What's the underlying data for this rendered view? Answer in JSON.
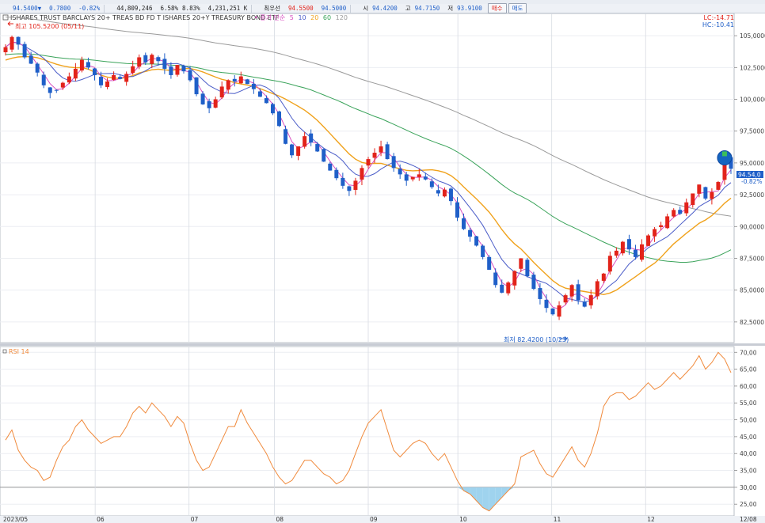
{
  "quote_bar": {
    "last_price": "94.5400",
    "change_arrow": "▼",
    "change": "0.7800",
    "change_pct": "-0.82%",
    "volume": "44,809,246",
    "volume_pct": "6.58%",
    "turnover_pct": "8.83%",
    "trade_value": "4,231,251 K",
    "bid_label": "최우선",
    "bid": "94.5500",
    "ask": "94.5000",
    "open_label": "시",
    "open": "94.4200",
    "high_label": "고",
    "high": "94.7150",
    "low_label": "저",
    "low": "93.9100",
    "buy_button": "매수",
    "sell_button": "매도"
  },
  "colors": {
    "up_candle": "#e2231a",
    "down_candle": "#1f5fc8",
    "ma5": "#d94fc0",
    "ma10": "#4a5cc8",
    "ma20": "#f0a21c",
    "ma60": "#3aa35a",
    "ma120": "#9a9a9a",
    "rsi": "#f08a3c",
    "highlight_marker": "#1565c0"
  },
  "chart_data": [
    {
      "type": "candlestick",
      "title": "ISHARES TRUST BARCLAYS 20+ TREAS BD FD T  ISHARES 20+Y TREASURY BOND ETF",
      "ma_legend_label": "종가 단순",
      "moving_averages": [
        "5",
        "10",
        "20",
        "60",
        "120"
      ],
      "ylim": [
        81,
        106.5
      ],
      "y_ticks": [
        "105,0000",
        "102,5000",
        "100,0000",
        "97,5000",
        "95,0000",
        "92,5000",
        "90,0000",
        "87,5000",
        "85,0000",
        "82,5000"
      ],
      "y_tick_values": [
        105,
        102.5,
        100,
        97.5,
        95,
        92.5,
        90,
        87.5,
        85,
        82.5
      ],
      "x_labels": [
        "2023/05",
        "06",
        "07",
        "08",
        "09",
        "10",
        "11",
        "12",
        "12/08"
      ],
      "current_price_label": "94.54,0",
      "current_change_label": "-0.82%",
      "lc_label": "LC:-14.71",
      "hc_label": "HC:-10.41",
      "annotations": {
        "high": "최고 105.5200 (05/11)",
        "low": "최저 82.4200 (10/23)"
      },
      "approx_closes": [
        104.1,
        104.9,
        104.3,
        103.3,
        102.8,
        102.1,
        101.1,
        100.5,
        100.7,
        101.3,
        101.8,
        102.4,
        103.1,
        102.5,
        101.9,
        101.1,
        101.4,
        101.9,
        101.6,
        102.0,
        102.6,
        103.3,
        102.9,
        103.5,
        103.0,
        102.4,
        101.9,
        102.7,
        102.2,
        101.5,
        100.4,
        99.6,
        99.3,
        100.0,
        101.0,
        101.5,
        101.4,
        101.8,
        101.2,
        100.8,
        100.2,
        99.7,
        98.9,
        97.9,
        96.5,
        95.6,
        96.3,
        97.1,
        96.6,
        95.9,
        95.1,
        94.4,
        93.8,
        93.2,
        92.8,
        93.6,
        94.6,
        95.3,
        95.8,
        96.3,
        95.3,
        94.6,
        94.1,
        93.6,
        93.9,
        94.1,
        93.7,
        93.1,
        92.6,
        92.9,
        92.0,
        90.7,
        89.8,
        89.2,
        88.5,
        87.6,
        86.6,
        85.4,
        84.8,
        85.6,
        86.5,
        87.5,
        86.1,
        85.1,
        84.3,
        83.6,
        83.1,
        83.8,
        84.6,
        85.4,
        84.2,
        83.7,
        84.6,
        85.7,
        86.3,
        87.7,
        88.1,
        88.8,
        88.2,
        87.6,
        88.6,
        89.3,
        89.8,
        90.1,
        90.8,
        91.3,
        91.0,
        91.9,
        92.6,
        93.3,
        92.2,
        92.7,
        93.5,
        95.32,
        94.54
      ]
    },
    {
      "type": "line",
      "title": "RSI 14",
      "ylim": [
        22,
        71
      ],
      "y_ticks": [
        "70,00",
        "65,00",
        "60,00",
        "55,00",
        "50,00",
        "45,00",
        "40,00",
        "35,00",
        "30,00",
        "25,00"
      ],
      "y_tick_values": [
        70,
        65,
        60,
        55,
        50,
        45,
        40,
        35,
        30,
        25
      ],
      "reference_line": 30,
      "approx_values": [
        44,
        47,
        41,
        38,
        36,
        35,
        32,
        33,
        38,
        42,
        44,
        48,
        50,
        47,
        45,
        43,
        44,
        45,
        45,
        48,
        52,
        54,
        52,
        55,
        53,
        51,
        48,
        51,
        49,
        43,
        38,
        35,
        36,
        40,
        44,
        48,
        48,
        53,
        49,
        46,
        43,
        40,
        36,
        33,
        31,
        32,
        35,
        38,
        38,
        36,
        34,
        33,
        31,
        32,
        35,
        40,
        45,
        49,
        51,
        53,
        47,
        41,
        39,
        41,
        43,
        44,
        43,
        40,
        38,
        40,
        36,
        32,
        29,
        28,
        26,
        24,
        23,
        25,
        27,
        29,
        31,
        39,
        40,
        41,
        37,
        34,
        33,
        36,
        39,
        42,
        38,
        36,
        40,
        46,
        54,
        57,
        58,
        58,
        56,
        57,
        59,
        61,
        59,
        60,
        62,
        64,
        62,
        64,
        66,
        69,
        65,
        67,
        70,
        68,
        64
      ]
    }
  ]
}
